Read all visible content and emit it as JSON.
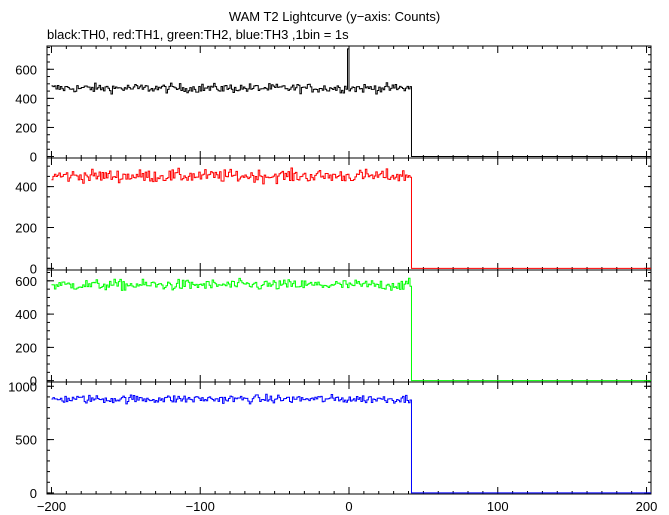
{
  "chart_data": {
    "type": "line",
    "title": "WAM T2 Lightcurve (y−axis: Counts)",
    "subtitle": "black:TH0, red:TH1, green:TH2, blue:TH3 ,1bin = 1s",
    "xlabel": "",
    "ylabel": "",
    "xlim": [
      -203,
      203
    ],
    "x_ticks": [
      -200,
      -100,
      0,
      100,
      200
    ],
    "x_tick_labels": [
      "−200",
      "−100",
      "0",
      "100",
      "200"
    ],
    "panels": [
      {
        "name": "TH0",
        "color": "#000000",
        "ylim": [
          -10,
          760
        ],
        "y_ticks": [
          0,
          200,
          400,
          600
        ],
        "y_tick_labels": [
          "0",
          "200",
          "400",
          "600"
        ],
        "y_minor_step": 50,
        "series": {
          "x_start": -200,
          "x_end": 42,
          "step": 1,
          "level": 470,
          "noise": 22,
          "spike": {
            "x": -1,
            "value": 740
          },
          "after_value": 0,
          "after_until": 203
        }
      },
      {
        "name": "TH1",
        "color": "#ff0000",
        "ylim": [
          -8,
          540
        ],
        "y_ticks": [
          0,
          200,
          400
        ],
        "y_tick_labels": [
          "0",
          "200",
          "400"
        ],
        "y_minor_step": 50,
        "series": {
          "x_start": -200,
          "x_end": 42,
          "step": 1,
          "level": 452,
          "noise": 22,
          "after_value": 0,
          "after_until": 203
        }
      },
      {
        "name": "TH2",
        "color": "#00ff00",
        "ylim": [
          -8,
          665
        ],
        "y_ticks": [
          0,
          200,
          400,
          600
        ],
        "y_tick_labels": [
          "0",
          "200",
          "400",
          "600"
        ],
        "y_minor_step": 50,
        "series": {
          "x_start": -200,
          "x_end": 42,
          "step": 1,
          "level": 575,
          "noise": 23,
          "after_value": 0,
          "after_until": 203
        }
      },
      {
        "name": "TH3",
        "color": "#0000ff",
        "ylim": [
          -10,
          1040
        ],
        "y_ticks": [
          0,
          500,
          1000
        ],
        "y_tick_labels": [
          "0",
          "500",
          "1000"
        ],
        "y_minor_step": 100,
        "series": {
          "x_start": -200,
          "x_end": 42,
          "step": 1,
          "level": 880,
          "noise": 28,
          "after_value": 0,
          "after_until": 203
        }
      }
    ],
    "grid": false,
    "legend": "none"
  }
}
